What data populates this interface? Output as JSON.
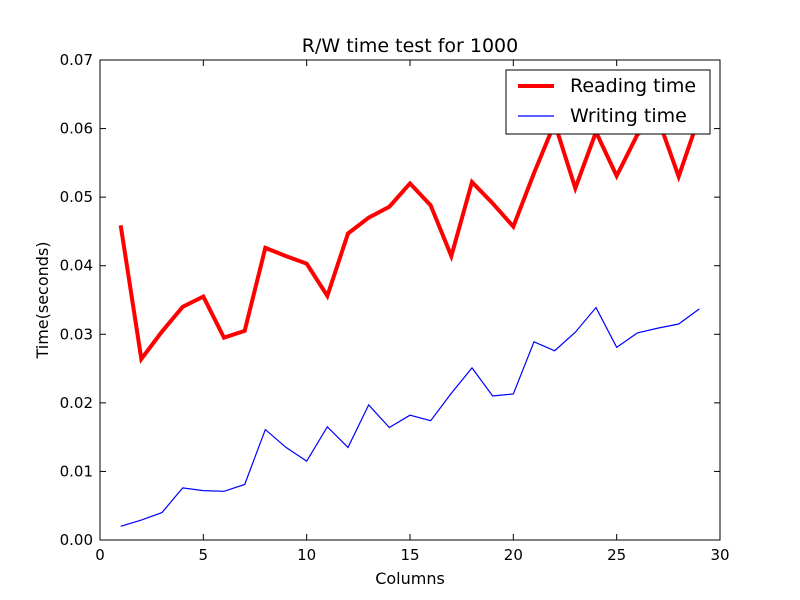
{
  "chart_data": {
    "type": "line",
    "title": "R/W time test for 1000",
    "xlabel": "Columns",
    "ylabel": "Time(seconds)",
    "xlim": [
      0,
      30
    ],
    "ylim": [
      0,
      0.07
    ],
    "xticks": [
      0,
      5,
      10,
      15,
      20,
      25,
      30
    ],
    "xtick_labels": [
      "0",
      "5",
      "10",
      "15",
      "20",
      "25",
      "30"
    ],
    "yticks": [
      0,
      0.01,
      0.02,
      0.03,
      0.04,
      0.05,
      0.06,
      0.07
    ],
    "ytick_labels": [
      "0.00",
      "0.01",
      "0.02",
      "0.03",
      "0.04",
      "0.05",
      "0.06",
      "0.07"
    ],
    "grid": false,
    "legend_position": "top-right",
    "x": [
      1,
      2,
      3,
      4,
      5,
      6,
      7,
      8,
      9,
      10,
      11,
      12,
      13,
      14,
      15,
      16,
      17,
      18,
      19,
      20,
      21,
      22,
      23,
      24,
      25,
      26,
      27,
      28,
      29
    ],
    "series": [
      {
        "name": "Reading time",
        "color": "#ff0000",
        "line_width": "thick",
        "values": [
          0.0459,
          0.0264,
          0.0304,
          0.034,
          0.0355,
          0.0295,
          0.0305,
          0.0426,
          0.0414,
          0.0403,
          0.0356,
          0.0447,
          0.047,
          0.0486,
          0.052,
          0.0488,
          0.0414,
          0.0522,
          0.0491,
          0.0457,
          0.0535,
          0.0608,
          0.0513,
          0.0595,
          0.0531,
          0.0591,
          0.0615,
          0.053,
          0.0618
        ]
      },
      {
        "name": "Writing time",
        "color": "#0000ff",
        "line_width": "thin",
        "values": [
          0.002,
          0.0029,
          0.004,
          0.0076,
          0.0072,
          0.0071,
          0.0081,
          0.0161,
          0.0135,
          0.0115,
          0.0165,
          0.0135,
          0.0197,
          0.0164,
          0.0182,
          0.0174,
          0.0214,
          0.0251,
          0.021,
          0.0213,
          0.0289,
          0.0276,
          0.0303,
          0.0339,
          0.0281,
          0.0302,
          0.0309,
          0.0315,
          0.0337
        ]
      }
    ]
  }
}
